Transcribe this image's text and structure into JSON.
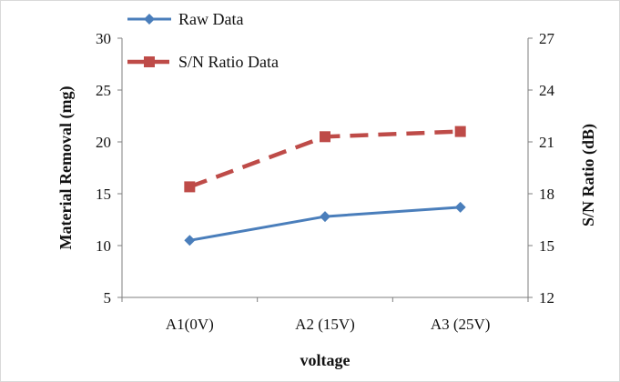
{
  "chart_data": {
    "type": "line",
    "categories": [
      "A1(0V)",
      "A2 (15V)",
      "A3 (25V)"
    ],
    "xlabel": "voltage",
    "ylabel": "Material Removal (mg)",
    "y2label": "S/N Ratio (dB)",
    "ylim": [
      5,
      30
    ],
    "y2lim": [
      12,
      27
    ],
    "yticks": [
      "5",
      "10",
      "15",
      "20",
      "25",
      "30"
    ],
    "y2ticks": [
      "12",
      "15",
      "18",
      "21",
      "24",
      "27"
    ],
    "legend_position": "top-left",
    "series": [
      {
        "name": "Raw Data",
        "axis": "left",
        "values": [
          10.5,
          12.8,
          13.7
        ],
        "color": "#4a7ebb",
        "marker": "diamond",
        "line_style": "solid"
      },
      {
        "name": "S/N Ratio Data",
        "axis": "right",
        "values": [
          18.4,
          21.3,
          21.6
        ],
        "color": "#be4b48",
        "marker": "square",
        "line_style": "dashed"
      }
    ]
  }
}
